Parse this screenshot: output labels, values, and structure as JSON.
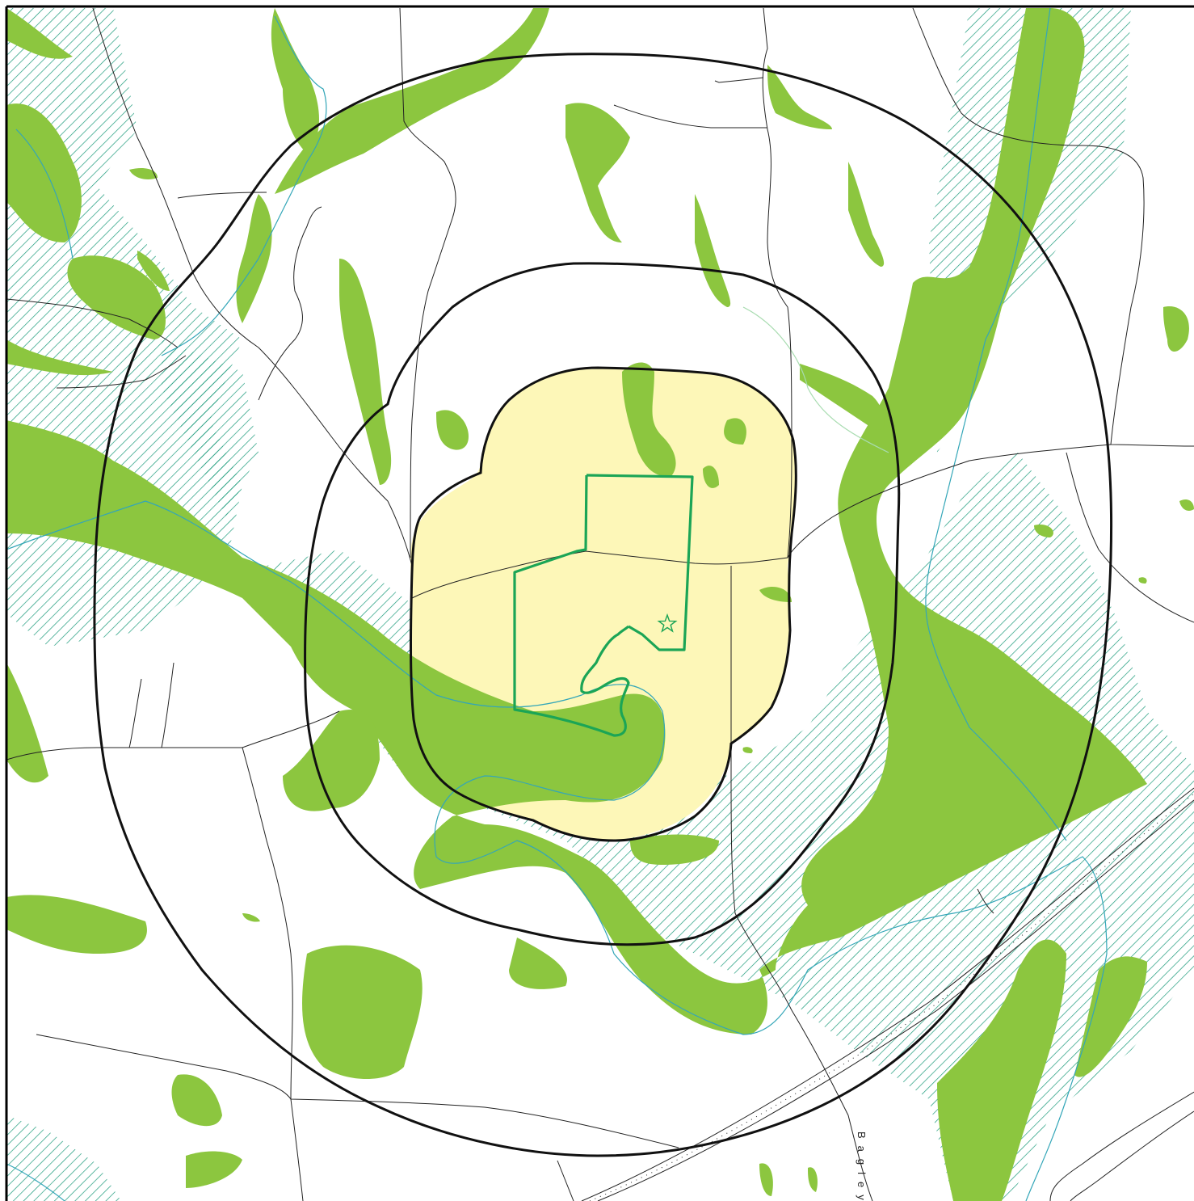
{
  "map": {
    "road_labels": [
      {
        "id": "bagley",
        "text": "Bagley"
      }
    ],
    "colors": {
      "background": "#ffffff",
      "vegetation": "#8cc63f",
      "hatch": "#1a9a7a",
      "stream": "#33a6b8",
      "buffer_ring": "#111111",
      "site_zone": "#fdf7b8",
      "site_boundary": "#1ba556",
      "road": "#222222",
      "frame": "#000000"
    },
    "icons": {
      "site_marker": "star-icon"
    },
    "rings": 3
  }
}
